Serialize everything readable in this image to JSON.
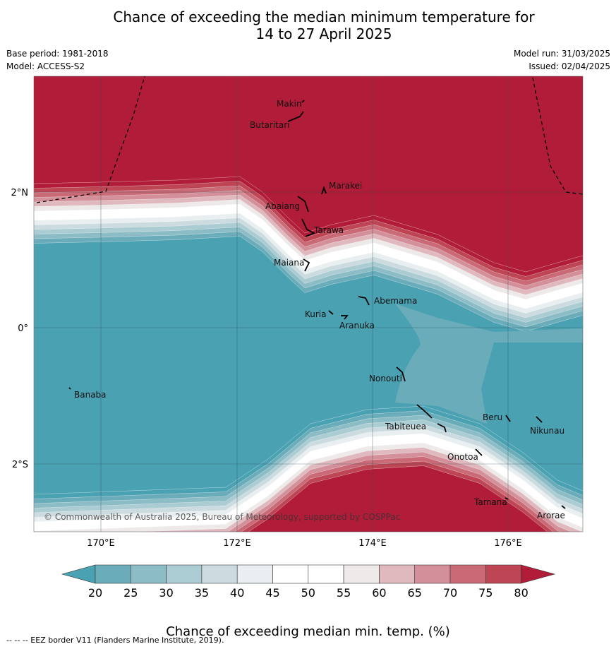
{
  "title_line1": "Chance of exceeding the median minimum temperature for",
  "title_line2": "14 to 27 April 2025",
  "meta": {
    "base_period": "Base period: 1981-2018",
    "model": "Model: ACCESS-S2",
    "model_run": "Model run: 31/03/2025",
    "issued": "Issued: 02/04/2025"
  },
  "map": {
    "lat_labels": [
      "2°N",
      "0°",
      "2°S"
    ],
    "lon_labels": [
      "170°E",
      "172°E",
      "174°E",
      "176°E"
    ],
    "places": [
      "Makin",
      "Butaritari",
      "Marakei",
      "Abaiang",
      "Tarawa",
      "Maiana",
      "Abemama",
      "Kuria",
      "Aranuka",
      "Nonouti",
      "Banaba",
      "Beru",
      "Nikunau",
      "Tabiteuea",
      "Onotoa",
      "Tamana",
      "Arorae"
    ],
    "copyright": "© Commonwealth of Australia 2025, Bureau of Meteorology, supported by COSPPac"
  },
  "colorbar": {
    "ticks": [
      "20",
      "25",
      "30",
      "35",
      "40",
      "45",
      "50",
      "55",
      "60",
      "65",
      "70",
      "75",
      "80"
    ],
    "colors": [
      "#6aacb9",
      "#8cbcc6",
      "#abccd2",
      "#cbdbdf",
      "#e9eff1",
      "#ffffff",
      "#ffffff",
      "#eeeaea",
      "#e0b9bf",
      "#d4909a",
      "#c96a76",
      "#bd4554"
    ],
    "low_color": "#4aa1b2",
    "high_color": "#b11c38",
    "label": "Chance of exceeding median min. temp. (%)"
  },
  "footnote": "--  --  -- EEZ border V11 (Flanders Marine Institute, 2019)."
}
